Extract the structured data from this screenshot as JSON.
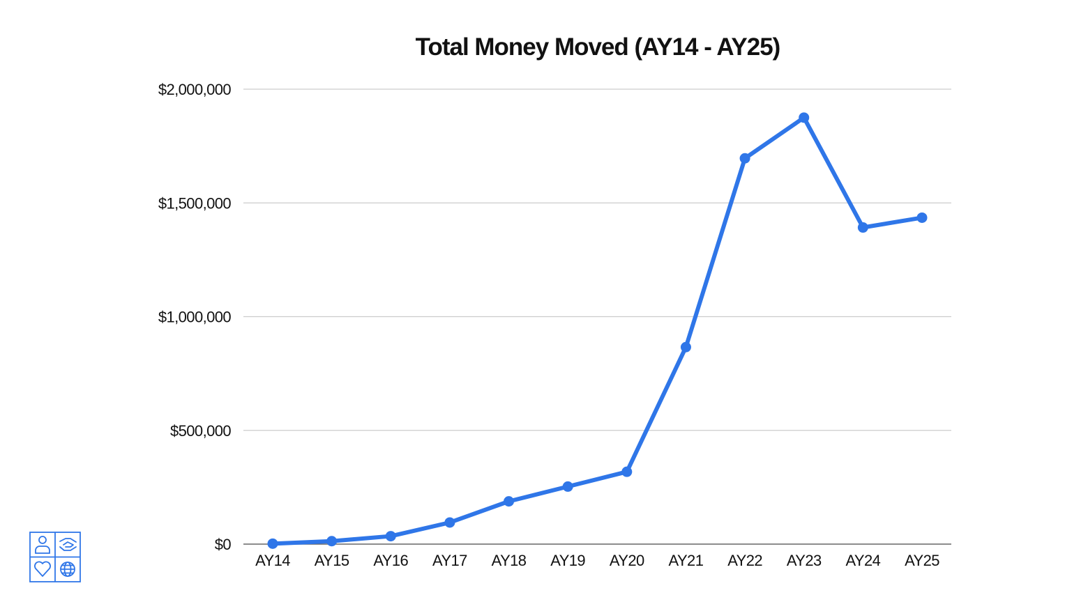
{
  "chart_data": {
    "type": "line",
    "title": "Total Money Moved (AY14 - AY25)",
    "xlabel": "",
    "ylabel": "",
    "categories": [
      "AY14",
      "AY15",
      "AY16",
      "AY17",
      "AY18",
      "AY19",
      "AY20",
      "AY21",
      "AY22",
      "AY23",
      "AY24",
      "AY25"
    ],
    "series": [
      {
        "values": [
          2000,
          13000,
          35000,
          95000,
          188000,
          253000,
          318000,
          866000,
          1696000,
          1875000,
          1392000,
          1435000
        ],
        "color": "#2f76e8"
      }
    ],
    "ylim": [
      0,
      2000000
    ],
    "yticks": [
      0,
      500000,
      1000000,
      1500000,
      2000000
    ],
    "ytick_labels": [
      "$0",
      "$500,000",
      "$1,000,000",
      "$1,500,000",
      "$2,000,000"
    ],
    "grid": true,
    "legend": "none",
    "gridline_color": "#cccccc",
    "axis_color": "#666666"
  },
  "logo": {
    "icons": [
      "person-icon",
      "handshake-icon",
      "heart-icon",
      "globe-icon"
    ],
    "color": "#2f76e8"
  }
}
